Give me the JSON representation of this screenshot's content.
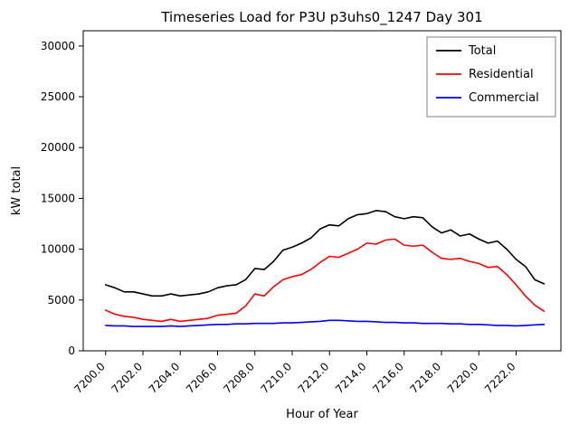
{
  "figure": {
    "title": "Timeseries Load for P3U p3uhs0_1247  Day 301",
    "xlabel": "Hour of Year",
    "ylabel": "kW total"
  },
  "chart_data": {
    "type": "line",
    "title": "Timeseries Load for P3U p3uhs0_1247  Day 301",
    "xlabel": "Hour of Year",
    "ylabel": "kW total",
    "xlim": [
      7198.8,
      7224.4
    ],
    "ylim": [
      0,
      31500
    ],
    "grid": false,
    "legend_position": "upper right",
    "x_ticks": [
      7200,
      7202,
      7204,
      7206,
      7208,
      7210,
      7212,
      7214,
      7216,
      7218,
      7220,
      7222
    ],
    "x_tick_labels": [
      "7200.0",
      "7202.0",
      "7204.0",
      "7206.0",
      "7208.0",
      "7210.0",
      "7212.0",
      "7214.0",
      "7216.0",
      "7218.0",
      "7220.0",
      "7222.0"
    ],
    "x_tick_rotation": 45,
    "y_ticks": [
      0,
      5000,
      10000,
      15000,
      20000,
      25000,
      30000
    ],
    "y_tick_labels": [
      "0",
      "5000",
      "10000",
      "15000",
      "20000",
      "25000",
      "30000"
    ],
    "x": [
      7200.0,
      7200.5,
      7201.0,
      7201.5,
      7202.0,
      7202.5,
      7203.0,
      7203.5,
      7204.0,
      7204.5,
      7205.0,
      7205.5,
      7206.0,
      7206.5,
      7207.0,
      7207.5,
      7208.0,
      7208.5,
      7209.0,
      7209.5,
      7210.0,
      7210.5,
      7211.0,
      7211.5,
      7212.0,
      7212.5,
      7213.0,
      7213.5,
      7214.0,
      7214.5,
      7215.0,
      7215.5,
      7216.0,
      7216.5,
      7217.0,
      7217.5,
      7218.0,
      7218.5,
      7219.0,
      7219.5,
      7220.0,
      7220.5,
      7221.0,
      7221.5,
      7222.0,
      7222.5,
      7223.0,
      7223.5
    ],
    "series": [
      {
        "name": "Total",
        "color": "#000000",
        "values": [
          6500,
          6200,
          5800,
          5800,
          5600,
          5400,
          5400,
          5600,
          5400,
          5500,
          5600,
          5800,
          6200,
          6400,
          6500,
          7000,
          8100,
          8000,
          8800,
          9900,
          10200,
          10600,
          11100,
          12000,
          12400,
          12300,
          13000,
          13400,
          13500,
          13800,
          13700,
          13200,
          13000,
          13200,
          13100,
          12200,
          11600,
          11900,
          11300,
          11500,
          11000,
          10600,
          10800,
          10000,
          9000,
          8300,
          7000,
          6600
        ]
      },
      {
        "name": "Residential",
        "color": "#ff0000",
        "values": [
          4000,
          3600,
          3400,
          3300,
          3100,
          3000,
          2900,
          3100,
          2900,
          3000,
          3100,
          3200,
          3500,
          3600,
          3700,
          4400,
          5600,
          5400,
          6300,
          7000,
          7300,
          7500,
          8000,
          8700,
          9300,
          9200,
          9600,
          10000,
          10600,
          10500,
          10900,
          11000,
          10400,
          10300,
          10400,
          9700,
          9100,
          9000,
          9100,
          8800,
          8600,
          8200,
          8300,
          7500,
          6500,
          5400,
          4500,
          3900
        ]
      },
      {
        "name": "Commercial",
        "color": "#0000ff",
        "values": [
          2500,
          2450,
          2450,
          2400,
          2400,
          2400,
          2400,
          2450,
          2400,
          2450,
          2500,
          2550,
          2600,
          2600,
          2650,
          2650,
          2700,
          2700,
          2700,
          2750,
          2750,
          2800,
          2850,
          2900,
          3000,
          3000,
          2950,
          2900,
          2900,
          2850,
          2800,
          2800,
          2750,
          2750,
          2700,
          2700,
          2700,
          2650,
          2650,
          2600,
          2600,
          2550,
          2500,
          2500,
          2450,
          2500,
          2550,
          2600
        ]
      }
    ]
  }
}
